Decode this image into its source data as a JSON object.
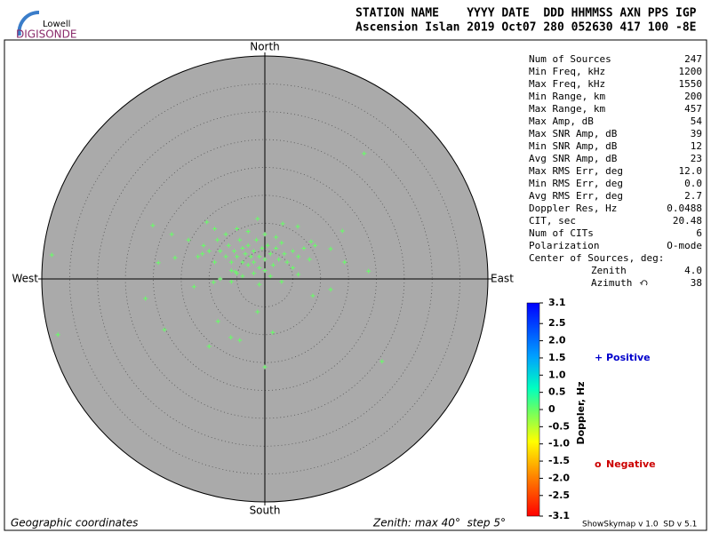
{
  "logo": {
    "top": "Lowell",
    "bottom": "DIGISONDE"
  },
  "header": {
    "line1": "STATION NAME    YYYY DATE  DDD HHMMSS AXN PPS IGP",
    "line2": "Ascension Islan 2019 Oct07 280 052630 417 100 -8E"
  },
  "chart_data": {
    "type": "polar-scatter",
    "directions": {
      "north": "North",
      "south": "South",
      "east": "East",
      "west": "West"
    },
    "rlim": [
      0,
      40
    ],
    "rticks": [
      5,
      10,
      15,
      20,
      25,
      30,
      35,
      40
    ],
    "series": [
      {
        "color": "#66ff66",
        "x": [
          17.8,
          -38.2,
          -37.1,
          21.0,
          0,
          -18.0,
          -21.4,
          -8.4,
          -6.1,
          -4.5,
          -10.0,
          1.4,
          -1.3,
          8.6,
          11.8,
          18.6,
          14.3,
          13.9,
          11.8,
          -20.1,
          -16.7,
          -19.1,
          -16.1,
          -13.7,
          -10.4,
          -1.3,
          3.2,
          5.9,
          8.3,
          -9.2,
          -12.7,
          -5.3,
          -11.2,
          -8,
          -7,
          -6.5,
          -6,
          -5.5,
          -5,
          -4.5,
          -4,
          -4,
          -3.5,
          -3,
          -3,
          -2.5,
          -2,
          -2,
          -1.5,
          -1,
          -1,
          -0.5,
          0,
          0.5,
          1,
          1.5,
          2,
          2.5,
          3,
          3.5,
          4,
          5,
          6,
          7,
          -9,
          -10,
          -8.5,
          -6,
          -5,
          -4,
          -2,
          0,
          1,
          -7,
          -3,
          0,
          2,
          -11,
          -12,
          5,
          8,
          -1,
          -8,
          -6,
          3,
          6,
          9,
          -5,
          -9
        ],
        "values": [
          22.5,
          4.3,
          -10.0,
          -14.8,
          -15.8,
          -9.1,
          -3.5,
          -7.6,
          -10.5,
          -11.0,
          -12.1,
          -9.6,
          -5.9,
          -3.0,
          -1.9,
          1.4,
          3.0,
          8.6,
          5.4,
          9.6,
          8.0,
          2.9,
          3.8,
          7.0,
          10.2,
          10.8,
          9.9,
          9.4,
          6.7,
          -0.6,
          -1.4,
          1.3,
          4.5,
          5,
          4,
          6,
          3,
          5,
          4,
          7,
          3,
          5.5,
          4.5,
          2.5,
          6,
          4,
          3,
          5,
          7,
          4,
          2,
          5.5,
          3.5,
          6,
          4.5,
          2.5,
          5.5,
          3.5,
          6.5,
          4.5,
          3,
          5,
          4,
          5.5,
          3,
          5,
          7,
          1.5,
          1,
          0.5,
          1,
          1.5,
          0.5,
          8,
          8.5,
          8,
          7.5,
          6,
          4,
          2,
          3.5,
          -1,
          0,
          -0.5,
          -0.5,
          0.8,
          6,
          9,
          9
        ]
      }
    ],
    "footer_left": "Geographic coordinates",
    "footer_mid": "Zenith: max 40°  step 5°"
  },
  "stats": [
    [
      "Num of Sources",
      "247"
    ],
    [
      "Min Freq, kHz",
      "1200"
    ],
    [
      "Max Freq, kHz",
      "1550"
    ],
    [
      "Min Range, km",
      "200"
    ],
    [
      "Max Range, km",
      "457"
    ],
    [
      "Max Amp, dB",
      "54"
    ],
    [
      "Max SNR Amp, dB",
      "39"
    ],
    [
      "Min SNR Amp, dB",
      "12"
    ],
    [
      "Avg SNR Amp, dB",
      "23"
    ],
    [
      "Max RMS Err, deg",
      "12.0"
    ],
    [
      "Min RMS Err, deg",
      "0.0"
    ],
    [
      "Avg RMS Err, deg",
      "2.7"
    ],
    [
      "Doppler Res, Hz",
      "0.0488"
    ],
    [
      "CIT, sec",
      "20.48"
    ],
    [
      "Num of CITs",
      "6"
    ],
    [
      "Polarization",
      "O-mode"
    ]
  ],
  "center": {
    "title": "Center of Sources, deg:",
    "rows": [
      [
        "Zenith",
        "4.0"
      ],
      [
        "Azimuth",
        "38"
      ]
    ]
  },
  "colorbar": {
    "label": "Doppler, Hz",
    "ylim": [
      -3.1,
      3.1
    ],
    "yticks": [
      3.1,
      2.5,
      {
        "value": 2,
        "label": "2.0"
      },
      1.5,
      {
        "value": 1,
        "label": "1.0"
      },
      0.5,
      0,
      -0.5,
      {
        "value": -1,
        "label": "-1.0"
      },
      -1.5,
      {
        "value": -2,
        "label": "-2.0"
      },
      -2.5,
      -3.1
    ]
  },
  "legend": [
    {
      "symbol": "+",
      "label": "Positive",
      "color": "#0000cc"
    },
    {
      "symbol": "o",
      "label": "Negative",
      "color": "#cc0000"
    }
  ],
  "version": "ShowSkymap v 1.0  SD v 5.1"
}
